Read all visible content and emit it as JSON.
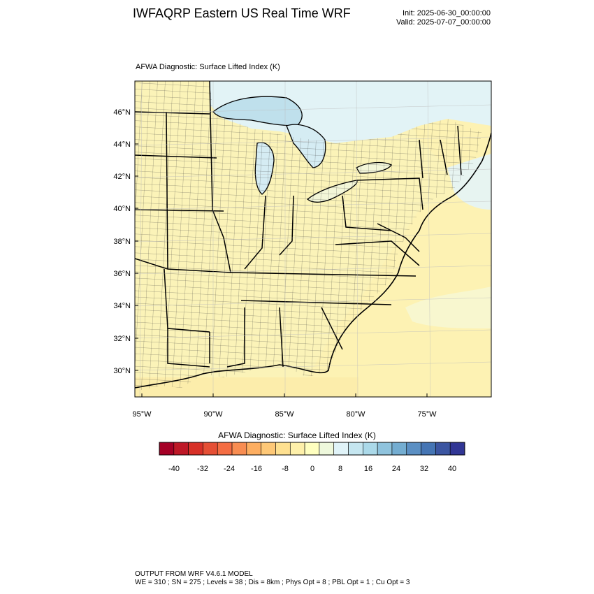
{
  "header": {
    "title": "IWFAQRP Eastern US Real Time WRF",
    "init": "Init: 2025-06-30_00:00:00",
    "valid": "Valid: 2025-07-07_00:00:00"
  },
  "plot": {
    "title": "AFWA Diagnostic: Surface Lifted Index   (K)",
    "lat_labels": [
      "46°N",
      "44°N",
      "42°N",
      "40°N",
      "38°N",
      "36°N",
      "34°N",
      "32°N",
      "30°N"
    ],
    "lon_labels": [
      "95°W",
      "90°W",
      "85°W",
      "80°W",
      "75°W"
    ]
  },
  "colorbar": {
    "title": "AFWA Diagnostic: Surface Lifted Index  (K)",
    "tick_labels": [
      "-40",
      "-32",
      "-24",
      "-16",
      "-8",
      "0",
      "8",
      "16",
      "24",
      "32",
      "40"
    ],
    "colors": [
      "#a50026",
      "#be1827",
      "#d73027",
      "#e54f35",
      "#f46d43",
      "#f88d52",
      "#fdae61",
      "#fec877",
      "#fee090",
      "#fef0aa",
      "#ffffbf",
      "#eef8dc",
      "#e0f3f8",
      "#c5e6f0",
      "#abd9e9",
      "#8fc3dd",
      "#74add1",
      "#5b8fc3",
      "#4575b4",
      "#3b55a1",
      "#313695"
    ]
  },
  "footer": {
    "line1": "OUTPUT FROM WRF V4.6.1 MODEL",
    "line2": "WE = 310 ; SN = 275 ; Levels = 38 ; Dis = 8km ; Phys Opt = 8 ; PBL Opt = 1 ; Cu Opt = 3"
  }
}
